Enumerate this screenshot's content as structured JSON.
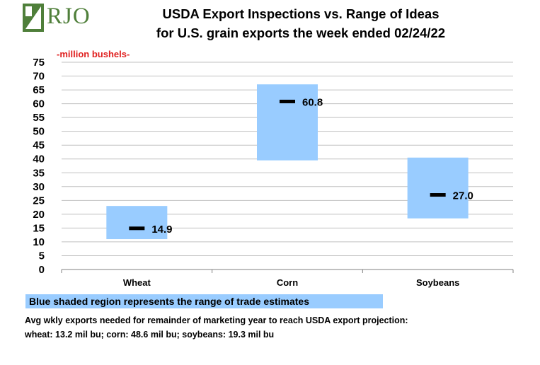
{
  "logo": {
    "text": "RJO"
  },
  "title": {
    "line1": "USDA Export Inspections vs. Range of Ideas",
    "line2": "for U.S. grain exports the week ended 02/24/22"
  },
  "colors": {
    "range": "#99ccff",
    "marker": "#000000",
    "unit_label": "#e0201f",
    "grid": "#c0c0c0",
    "logo_green": "#4f7f3a"
  },
  "chart_data": {
    "type": "bar",
    "title": "USDA Export Inspections vs. Range of Ideas for U.S. grain exports the week ended 02/24/22",
    "ylabel": "-million bushels-",
    "xlabel": "",
    "ylim": [
      0,
      75
    ],
    "yticks": [
      0,
      5,
      10,
      15,
      20,
      25,
      30,
      35,
      40,
      45,
      50,
      55,
      60,
      65,
      70,
      75
    ],
    "grid": true,
    "categories": [
      "Wheat",
      "Corn",
      "Soybeans"
    ],
    "series": [
      {
        "name": "Range of trade estimates (low)",
        "values": [
          11,
          39.5,
          18.5
        ]
      },
      {
        "name": "Range of trade estimates (high)",
        "values": [
          23,
          67,
          40.5
        ]
      },
      {
        "name": "USDA Export Inspections",
        "values": [
          14.9,
          60.8,
          27.0
        ],
        "labels": [
          "14.9",
          "60.8",
          "27.0"
        ]
      }
    ]
  },
  "legend": {
    "text": "Blue shaded region represents the range of trade estimates"
  },
  "notes": {
    "line1": "Avg wkly exports needed for remainder of marketing year to reach USDA export projection:",
    "line2": "wheat: 13.2 mil bu; corn: 48.6 mil bu; soybeans: 19.3 mil bu"
  }
}
